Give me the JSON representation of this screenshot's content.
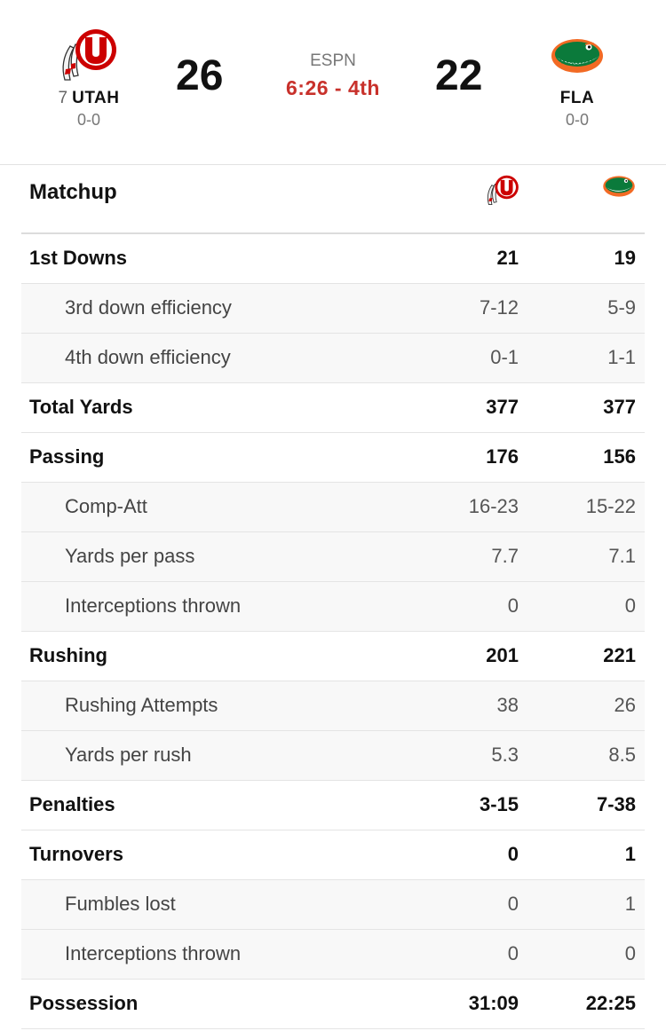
{
  "game": {
    "network": "ESPN",
    "clock": "6:26 - 4th",
    "away": {
      "rank": "7",
      "abbr": "UTAH",
      "record": "0-0",
      "score": "26",
      "logo_icon": "utah-utes-logo-icon"
    },
    "home": {
      "rank": "",
      "abbr": "FLA",
      "record": "0-0",
      "score": "22",
      "logo_icon": "florida-gators-logo-icon"
    }
  },
  "matchup": {
    "title": "Matchup",
    "rows": [
      {
        "label": "1st Downs",
        "away": "21",
        "home": "19",
        "type": "main"
      },
      {
        "label": "3rd down efficiency",
        "away": "7-12",
        "home": "5-9",
        "type": "sub"
      },
      {
        "label": "4th down efficiency",
        "away": "0-1",
        "home": "1-1",
        "type": "sub"
      },
      {
        "label": "Total Yards",
        "away": "377",
        "home": "377",
        "type": "main"
      },
      {
        "label": "Passing",
        "away": "176",
        "home": "156",
        "type": "main"
      },
      {
        "label": "Comp-Att",
        "away": "16-23",
        "home": "15-22",
        "type": "sub"
      },
      {
        "label": "Yards per pass",
        "away": "7.7",
        "home": "7.1",
        "type": "sub"
      },
      {
        "label": "Interceptions thrown",
        "away": "0",
        "home": "0",
        "type": "sub"
      },
      {
        "label": "Rushing",
        "away": "201",
        "home": "221",
        "type": "main"
      },
      {
        "label": "Rushing Attempts",
        "away": "38",
        "home": "26",
        "type": "sub"
      },
      {
        "label": "Yards per rush",
        "away": "5.3",
        "home": "8.5",
        "type": "sub"
      },
      {
        "label": "Penalties",
        "away": "3-15",
        "home": "7-38",
        "type": "main"
      },
      {
        "label": "Turnovers",
        "away": "0",
        "home": "1",
        "type": "main"
      },
      {
        "label": "Fumbles lost",
        "away": "0",
        "home": "1",
        "type": "sub"
      },
      {
        "label": "Interceptions thrown",
        "away": "0",
        "home": "0",
        "type": "sub"
      },
      {
        "label": "Possession",
        "away": "31:09",
        "home": "22:25",
        "type": "main"
      }
    ]
  },
  "colors": {
    "live_clock": "#c8312b",
    "utah_red": "#cc0000",
    "gators_green": "#0b7a3b",
    "gators_orange": "#f26a24"
  }
}
